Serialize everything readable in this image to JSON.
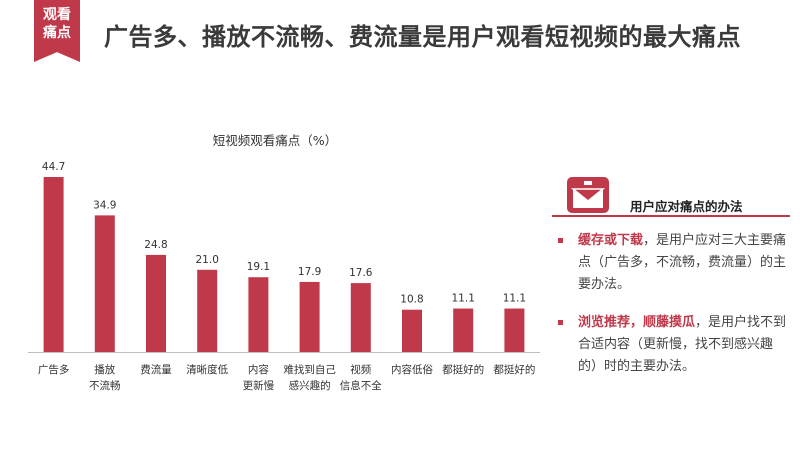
{
  "badge": {
    "line1": "观看",
    "line2": "痛点"
  },
  "header": {
    "title": "广告多、播放不流畅、费流量是用户观看短视频的最大痛点"
  },
  "colors": {
    "accent": "#c0394b",
    "bar": "#c0394b"
  },
  "chart_data": {
    "type": "bar",
    "title": "短视频观看痛点（%）",
    "xlabel": "",
    "ylabel": "",
    "ylim": [
      0,
      50
    ],
    "grid": false,
    "categories": [
      [
        "广告多"
      ],
      [
        "播放",
        "不流畅"
      ],
      [
        "费流量"
      ],
      [
        "清晰度低"
      ],
      [
        "内容",
        "更新慢"
      ],
      [
        "难找到自己",
        "感兴趣的"
      ],
      [
        "视频",
        "信息不全"
      ],
      [
        "内容低俗"
      ],
      [
        "都挺好的"
      ],
      [
        "都挺好的"
      ]
    ],
    "values": [
      44.7,
      34.9,
      24.8,
      21.0,
      19.1,
      17.9,
      17.6,
      10.8,
      11.1,
      11.1
    ],
    "value_labels": [
      "44.7",
      "34.9",
      "24.8",
      "21.0",
      "19.1",
      "17.9",
      "17.6",
      "10.8",
      "11.1",
      "11.1"
    ]
  },
  "panel": {
    "icon": "envelope-icon",
    "title": "用户应对痛点的办法",
    "tips": [
      {
        "highlight": "缓存或下载",
        "text": "，是用户应对三大主要痛点（广告多，不流畅，费流量）的主要办法。"
      },
      {
        "highlight": "浏览推荐，顺藤摸瓜",
        "text": "，是用户找不到合适内容（更新慢，找不到感兴趣的）时的主要办法。"
      }
    ]
  }
}
